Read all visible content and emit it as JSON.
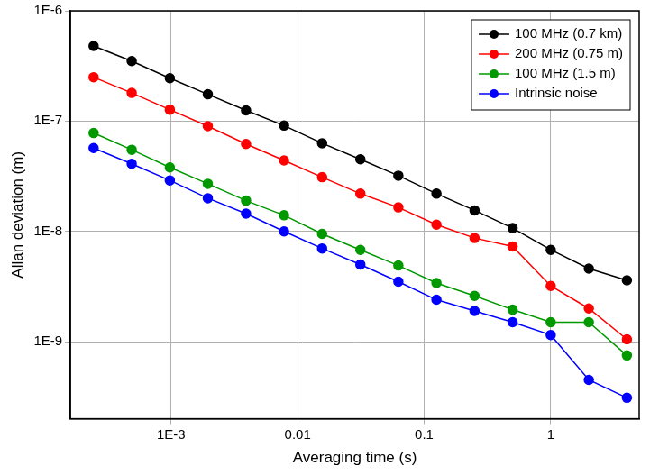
{
  "chart_data": {
    "type": "line",
    "x_label": "Averaging time (s)",
    "y_label": "Allan deviation (m)",
    "log": true,
    "grid": true,
    "legend": "upper right",
    "marker": "circle",
    "line_style": "solid",
    "x": [
      0.000244,
      0.000488,
      0.000977,
      0.00195,
      0.00391,
      0.00781,
      0.0156,
      0.0313,
      0.0625,
      0.125,
      0.25,
      0.5,
      1,
      2,
      4
    ],
    "xlim": [
      0.00016,
      5
    ],
    "xticks": [
      {
        "value": 0.001,
        "label": "1E-3"
      },
      0.01,
      0.1,
      1
    ],
    "ylim": [
      2e-10,
      1e-06
    ],
    "yticks": [
      {
        "value": 1e-09,
        "label": "1E-9"
      },
      {
        "value": 1e-08,
        "label": "1E-8"
      },
      {
        "value": 1e-07,
        "label": "1E-7"
      },
      {
        "value": 1e-06,
        "label": "1E-6"
      }
    ],
    "series": [
      {
        "name": "100 MHz (0.7 km)",
        "color": "#000000",
        "values": [
          4.8e-07,
          3.5e-07,
          2.45e-07,
          1.75e-07,
          1.25e-07,
          9.1e-08,
          6.3e-08,
          4.5e-08,
          3.2e-08,
          2.2e-08,
          1.55e-08,
          1.07e-08,
          6.8e-09,
          4.6e-09,
          3.6e-09
        ]
      },
      {
        "name": "200 MHz (0.75 m)",
        "color": "#ff0000",
        "values": [
          2.5e-07,
          1.8e-07,
          1.27e-07,
          9e-08,
          6.2e-08,
          4.4e-08,
          3.1e-08,
          2.2e-08,
          1.65e-08,
          1.15e-08,
          8.7e-09,
          7.3e-09,
          3.2e-09,
          2e-09,
          1.05e-09
        ]
      },
      {
        "name": "100 MHz (1.5 m)",
        "color": "#009900",
        "values": [
          7.8e-08,
          5.5e-08,
          3.8e-08,
          2.7e-08,
          1.9e-08,
          1.4e-08,
          9.5e-09,
          6.8e-09,
          4.9e-09,
          3.4e-09,
          2.6e-09,
          1.95e-09,
          1.5e-09,
          1.5e-09,
          7.5e-10
        ]
      },
      {
        "name": "Intrinsic noise",
        "color": "#0000ff",
        "values": [
          5.7e-08,
          4.1e-08,
          2.9e-08,
          2e-08,
          1.45e-08,
          1e-08,
          7e-09,
          5e-09,
          3.5e-09,
          2.4e-09,
          1.9e-09,
          1.5e-09,
          1.15e-09,
          4.5e-10,
          3.1e-10
        ]
      }
    ]
  }
}
